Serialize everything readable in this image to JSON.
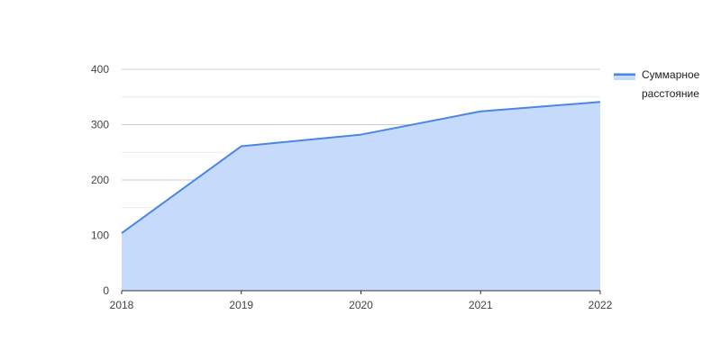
{
  "chart_data": {
    "type": "area",
    "title": "",
    "xlabel": "",
    "ylabel": "",
    "x": [
      "2018",
      "2019",
      "2020",
      "2021",
      "2022"
    ],
    "series": [
      {
        "name": "Суммарное расстояние",
        "values": [
          104,
          261,
          282,
          324,
          341
        ]
      }
    ],
    "ylim": [
      0,
      400
    ],
    "yticks": [
      0,
      100,
      200,
      300,
      400
    ],
    "grid": true,
    "legend": {
      "position": "right",
      "lines": [
        "Суммарное",
        "расстояние"
      ]
    },
    "colors": {
      "line": "#4a86e8",
      "fill": "#c6dafc",
      "grid_major": "#cccccc",
      "grid_minor": "#ececec",
      "axis": "#333333"
    }
  }
}
